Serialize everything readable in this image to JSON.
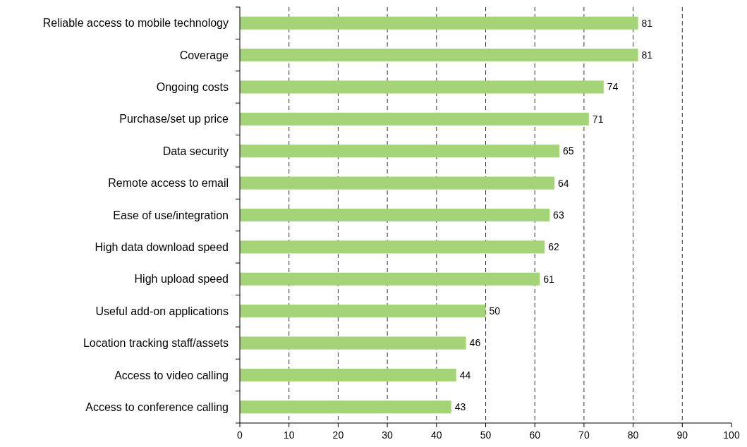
{
  "chart_data": {
    "type": "bar",
    "orientation": "horizontal",
    "categories": [
      "Reliable access to mobile technology",
      "Coverage",
      "Ongoing costs",
      "Purchase/set up price",
      "Data security",
      "Remote access to email",
      "Ease of use/integration",
      "High data download speed",
      "High upload speed",
      "Useful add-on applications",
      "Location tracking staff/assets",
      "Access to video calling",
      "Access to conference calling"
    ],
    "values": [
      81,
      81,
      74,
      71,
      65,
      64,
      63,
      62,
      61,
      50,
      46,
      44,
      43
    ],
    "color": "#a5d478",
    "xlim": [
      0,
      100
    ],
    "xticks": [
      0,
      10,
      20,
      30,
      40,
      50,
      60,
      70,
      80,
      90,
      100
    ],
    "grid": "x",
    "line_style": "dashed",
    "data_labels": true
  }
}
